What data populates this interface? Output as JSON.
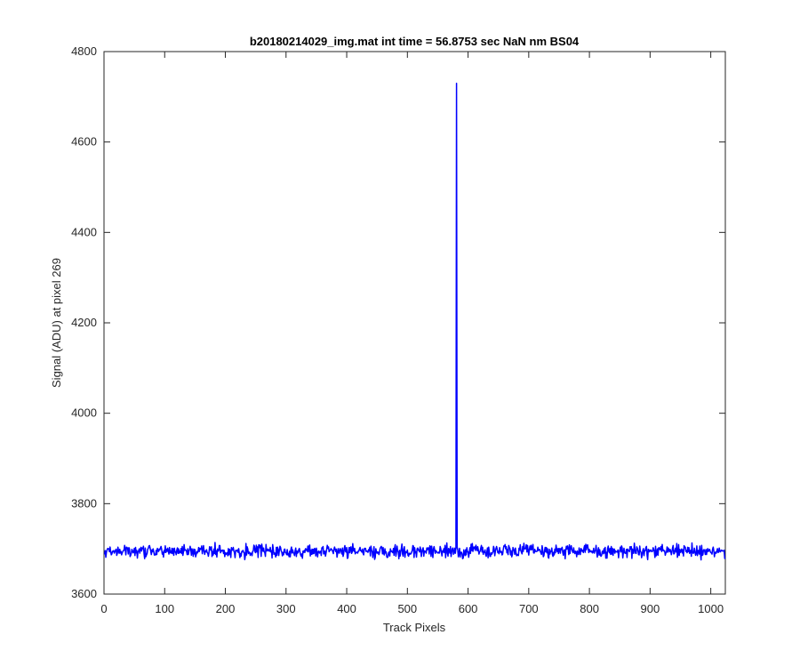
{
  "chart_data": {
    "type": "line",
    "title": "b20180214029_img.mat int time = 56.8753 sec  NaN nm BS04",
    "xlabel": "Track Pixels",
    "ylabel": "Signal (ADU) at pixel 269",
    "xlim": [
      0,
      1024
    ],
    "ylim": [
      3600,
      4800
    ],
    "xticks": [
      0,
      100,
      200,
      300,
      400,
      500,
      600,
      700,
      800,
      900,
      1000
    ],
    "yticks": [
      3600,
      3800,
      4000,
      4200,
      4400,
      4600,
      4800
    ],
    "grid": false,
    "series": [
      {
        "color": "#0000ff",
        "x_start": 1,
        "x_end": 1024,
        "baseline": 3695,
        "noise_amplitude": 12,
        "peak": {
          "x": 581,
          "y": 4730
        }
      }
    ]
  }
}
